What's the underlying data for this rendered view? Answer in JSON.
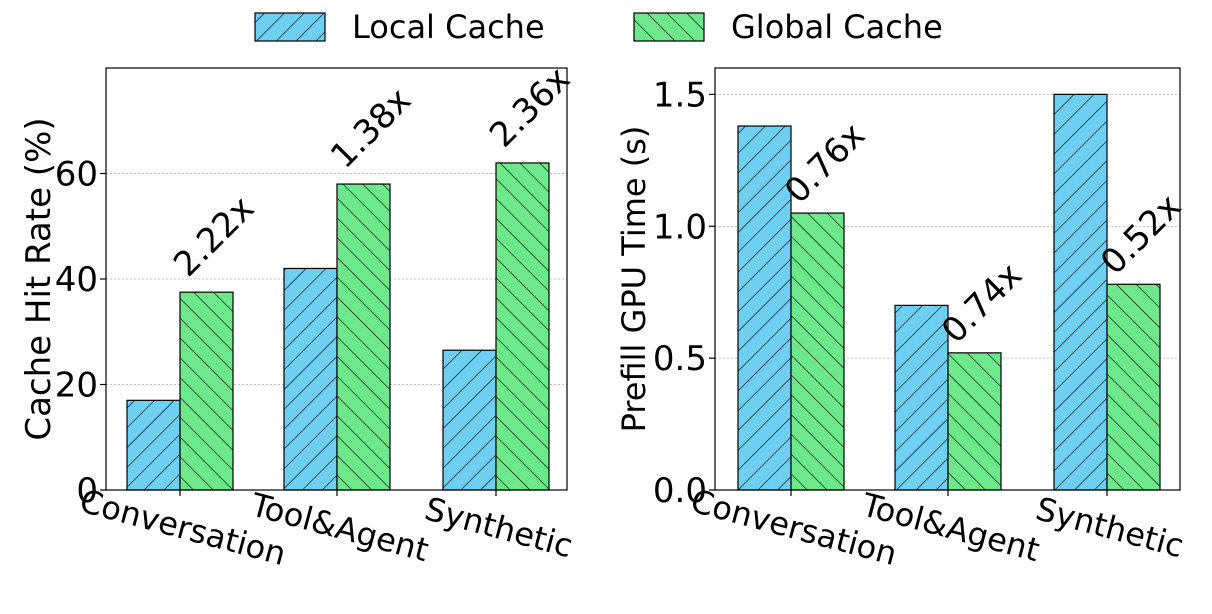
{
  "legend": {
    "position": "top-center",
    "entries": [
      {
        "name": "Local Cache",
        "color": "#6fcff0",
        "hatch": "forward-diagonal"
      },
      {
        "name": "Global Cache",
        "color": "#6de88a",
        "hatch": "back-diagonal"
      }
    ]
  },
  "chart_data": [
    {
      "type": "bar",
      "categories": [
        "Conversation",
        "Tool&Agent",
        "Synthetic"
      ],
      "series": [
        {
          "name": "Local Cache",
          "values": [
            17,
            42,
            26.5
          ]
        },
        {
          "name": "Global Cache",
          "values": [
            37.5,
            58,
            62
          ]
        }
      ],
      "annotations": [
        "2.22x",
        "1.38x",
        "2.36x"
      ],
      "ylabel": "Cache Hit Rate (%)",
      "xlabel": "",
      "ylim": [
        0,
        80
      ],
      "yticks": [
        0,
        20,
        40,
        60
      ],
      "grid": true
    },
    {
      "type": "bar",
      "categories": [
        "Conversation",
        "Tool&Agent",
        "Synthetic"
      ],
      "series": [
        {
          "name": "Local Cache",
          "values": [
            1.38,
            0.7,
            1.5
          ]
        },
        {
          "name": "Global Cache",
          "values": [
            1.05,
            0.52,
            0.78
          ]
        }
      ],
      "annotations": [
        "0.76x",
        "0.74x",
        "0.52x"
      ],
      "ylabel": "Prefill GPU Time (s)",
      "xlabel": "",
      "ylim": [
        0,
        1.6
      ],
      "yticks": [
        "0.0",
        "0.5",
        "1.0",
        "1.5"
      ],
      "grid": true
    }
  ]
}
